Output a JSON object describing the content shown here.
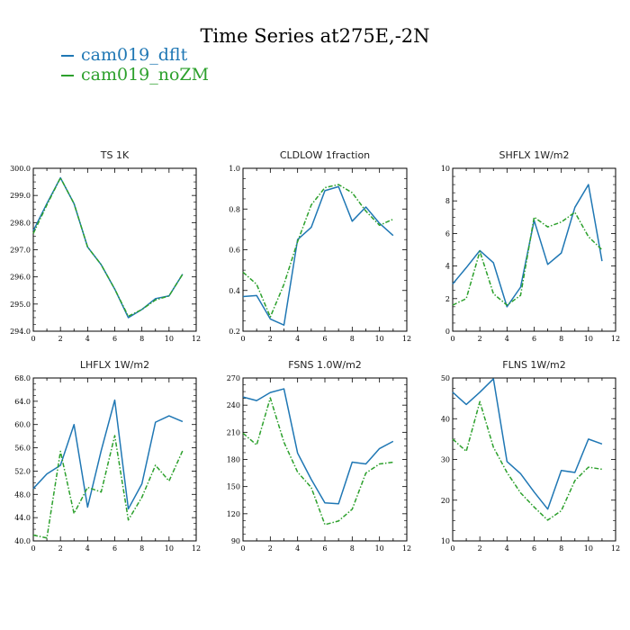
{
  "title": "Time Series at275E,-2N",
  "legend": [
    {
      "name": "cam019_dflt",
      "color": "#1f77b4"
    },
    {
      "name": "cam019_noZM",
      "color": "#2ca02c"
    }
  ],
  "chart_data": [
    {
      "type": "line",
      "title": "TS   1K",
      "x": [
        0,
        1,
        2,
        3,
        4,
        5,
        6,
        7,
        8,
        9,
        10,
        11
      ],
      "xlim": [
        0,
        12
      ],
      "xticks": [
        "0",
        "2",
        "4",
        "6",
        "8",
        "10",
        "12"
      ],
      "ylim": [
        294,
        300
      ],
      "yticks": [
        "294.0",
        "295.0",
        "296.0",
        "297.0",
        "298.0",
        "299.0",
        "300.0"
      ],
      "series": [
        {
          "name": "cam019_dflt",
          "values": [
            297.7,
            298.7,
            299.65,
            298.7,
            297.1,
            296.45,
            295.55,
            294.5,
            294.8,
            295.2,
            295.3,
            296.1
          ]
        },
        {
          "name": "cam019_noZM",
          "values": [
            297.6,
            298.65,
            299.65,
            298.7,
            297.1,
            296.45,
            295.55,
            294.55,
            294.8,
            295.15,
            295.3,
            296.1
          ]
        }
      ]
    },
    {
      "type": "line",
      "title": "CLDLOW   1fraction",
      "x": [
        0,
        1,
        2,
        3,
        4,
        5,
        6,
        7,
        8,
        9,
        10,
        11
      ],
      "xlim": [
        0,
        12
      ],
      "xticks": [
        "0",
        "2",
        "4",
        "6",
        "8",
        "10",
        "12"
      ],
      "ylim": [
        0.2,
        1.0
      ],
      "yticks": [
        "0.2",
        "0.4",
        "0.6",
        "0.8",
        "1.0"
      ],
      "series": [
        {
          "name": "cam019_dflt",
          "values": [
            0.37,
            0.375,
            0.26,
            0.23,
            0.65,
            0.71,
            0.89,
            0.91,
            0.74,
            0.81,
            0.73,
            0.67
          ]
        },
        {
          "name": "cam019_noZM",
          "values": [
            0.49,
            0.43,
            0.27,
            0.43,
            0.64,
            0.82,
            0.905,
            0.92,
            0.88,
            0.79,
            0.72,
            0.75
          ]
        }
      ]
    },
    {
      "type": "line",
      "title": "SHFLX   1W/m2",
      "x": [
        0,
        1,
        2,
        3,
        4,
        5,
        6,
        7,
        8,
        9,
        10,
        11
      ],
      "xlim": [
        0,
        12
      ],
      "xticks": [
        "0",
        "2",
        "4",
        "6",
        "8",
        "10",
        "12"
      ],
      "ylim": [
        0,
        10
      ],
      "yticks": [
        "0",
        "2",
        "4",
        "6",
        "8",
        "10"
      ],
      "series": [
        {
          "name": "cam019_dflt",
          "values": [
            2.9,
            3.9,
            4.95,
            4.2,
            1.5,
            2.7,
            6.8,
            4.1,
            4.8,
            7.6,
            9.0,
            4.3
          ]
        },
        {
          "name": "cam019_noZM",
          "values": [
            1.6,
            2.0,
            4.9,
            2.3,
            1.6,
            2.2,
            7.0,
            6.4,
            6.7,
            7.3,
            5.8,
            5.0
          ]
        }
      ]
    },
    {
      "type": "line",
      "title": "LHFLX   1W/m2",
      "x": [
        0,
        1,
        2,
        3,
        4,
        5,
        6,
        7,
        8,
        9,
        10,
        11
      ],
      "xlim": [
        0,
        12
      ],
      "xticks": [
        "0",
        "2",
        "4",
        "6",
        "8",
        "10",
        "12"
      ],
      "ylim": [
        40,
        68
      ],
      "yticks": [
        "40.0",
        "44.0",
        "48.0",
        "52.0",
        "56.0",
        "60.0",
        "64.0",
        "68.0"
      ],
      "series": [
        {
          "name": "cam019_dflt",
          "values": [
            49.0,
            51.5,
            53.0,
            60.0,
            45.8,
            55.5,
            64.2,
            45.5,
            49.8,
            60.4,
            61.5,
            60.5
          ]
        },
        {
          "name": "cam019_noZM",
          "values": [
            41.0,
            40.5,
            55.4,
            44.7,
            49.2,
            48.4,
            58.1,
            43.6,
            47.5,
            53.0,
            50.3,
            55.5
          ]
        }
      ]
    },
    {
      "type": "line",
      "title": "FSNS   1.0W/m2",
      "x": [
        0,
        1,
        2,
        3,
        4,
        5,
        6,
        7,
        8,
        9,
        10,
        11
      ],
      "xlim": [
        0,
        12
      ],
      "xticks": [
        "0",
        "2",
        "4",
        "6",
        "8",
        "10",
        "12"
      ],
      "ylim": [
        90,
        270
      ],
      "yticks": [
        "90",
        "120",
        "150",
        "180",
        "210",
        "240",
        "270"
      ],
      "series": [
        {
          "name": "cam019_dflt",
          "values": [
            249,
            245,
            254,
            258,
            187,
            158,
            132,
            131,
            177,
            175,
            192,
            200
          ]
        },
        {
          "name": "cam019_noZM",
          "values": [
            209,
            196,
            248,
            199,
            166,
            149,
            108,
            112,
            125,
            165,
            175,
            177
          ]
        }
      ]
    },
    {
      "type": "line",
      "title": "FLNS   1W/m2",
      "x": [
        0,
        1,
        2,
        3,
        4,
        5,
        6,
        7,
        8,
        9,
        10,
        11
      ],
      "xlim": [
        0,
        12
      ],
      "xticks": [
        "0",
        "2",
        "4",
        "6",
        "8",
        "10",
        "12"
      ],
      "ylim": [
        10,
        50
      ],
      "yticks": [
        "10",
        "20",
        "30",
        "40",
        "50"
      ],
      "series": [
        {
          "name": "cam019_dflt",
          "values": [
            46.5,
            43.5,
            46.5,
            49.8,
            29.5,
            26.5,
            22.0,
            17.8,
            27.3,
            26.8,
            35.0,
            33.8
          ]
        },
        {
          "name": "cam019_noZM",
          "values": [
            35.0,
            32.0,
            44.2,
            33.0,
            26.8,
            21.8,
            18.3,
            15.1,
            17.4,
            24.8,
            28.1,
            27.6
          ]
        }
      ]
    }
  ]
}
